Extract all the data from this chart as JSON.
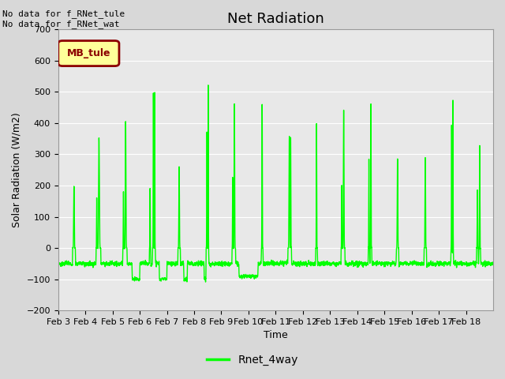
{
  "title": "Net Radiation",
  "xlabel": "Time",
  "ylabel": "Solar Radiation (W/m2)",
  "ylim": [
    -200,
    700
  ],
  "yticks": [
    -200,
    -100,
    0,
    100,
    200,
    300,
    400,
    500,
    600,
    700
  ],
  "line_color": "#00FF00",
  "line_width": 1.0,
  "bg_color": "#D8D8D8",
  "plot_bg": "#E8E8E8",
  "legend_label": "Rnet_4way",
  "legend_box_color": "#FFFF99",
  "legend_box_border": "#8B0000",
  "legend_label_inside": "MB_tule",
  "note1": "No data for f_RNet_tule",
  "note2": "No data for f_RNet_wat",
  "x_tick_labels": [
    "Feb 3",
    "Feb 4",
    "Feb 5",
    "Feb 6",
    "Feb 7",
    "Feb 8",
    "Feb 9",
    "Feb 10",
    "Feb 11",
    "Feb 12",
    "Feb 13",
    "Feb 14",
    "Feb 15",
    "Feb 16",
    "Feb 17",
    "Feb 18"
  ],
  "num_days": 16,
  "points_per_day": 288,
  "night_base": -50,
  "title_fontsize": 13,
  "label_fontsize": 9,
  "tick_fontsize": 8
}
